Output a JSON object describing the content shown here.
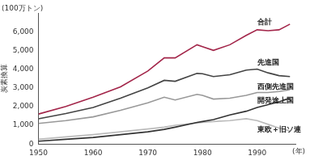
{
  "chart_data": {
    "type": "line",
    "y_label": "炭素換算",
    "y_unit": "(100万トン)",
    "x_label": "(年)",
    "x": [
      1950,
      1955,
      1960,
      1965,
      1970,
      1973,
      1975,
      1979,
      1980,
      1982,
      1985,
      1988,
      1990,
      1992,
      1994,
      1996
    ],
    "series": [
      {
        "name": "合計",
        "color": "#a3264a",
        "values": [
          1600,
          2000,
          2500,
          3050,
          3900,
          4600,
          4600,
          5300,
          5200,
          5000,
          5300,
          5800,
          6100,
          6050,
          6100,
          6400
        ]
      },
      {
        "name": "先進国",
        "color": "#444444",
        "values": [
          1350,
          1630,
          1950,
          2450,
          3000,
          3400,
          3350,
          3770,
          3750,
          3600,
          3700,
          3950,
          4000,
          3800,
          3650,
          3600
        ]
      },
      {
        "name": "西側先進国",
        "color": "#999999",
        "values": [
          1100,
          1250,
          1450,
          1800,
          2200,
          2500,
          2350,
          2650,
          2600,
          2400,
          2450,
          2600,
          2750,
          2750,
          2800,
          2900
        ]
      },
      {
        "name": "開発途上国",
        "color": "#333333",
        "values": [
          150,
          250,
          350,
          500,
          650,
          780,
          900,
          1150,
          1200,
          1300,
          1550,
          1750,
          1950,
          2100,
          2250,
          2450
        ]
      },
      {
        "name": "東欧＋旧ソ連",
        "color": "#bbbbbb",
        "values": [
          250,
          380,
          500,
          650,
          800,
          900,
          1000,
          1120,
          1150,
          1200,
          1250,
          1350,
          1250,
          1050,
          850,
          700
        ]
      }
    ],
    "xlim": [
      1950,
      1997
    ],
    "xticks": [
      1950,
      1960,
      1970,
      1980,
      1990
    ],
    "ylim": [
      0,
      7000
    ],
    "yticks": [
      0,
      {
        "value": 1000,
        "label": "1,000"
      },
      {
        "value": 2000,
        "label": "2,000"
      },
      {
        "value": 3000,
        "label": "3,000"
      },
      {
        "value": 4000,
        "label": "4,000"
      },
      {
        "value": 5000,
        "label": "5,000"
      },
      {
        "value": 6000,
        "label": "6,000"
      }
    ],
    "grid": false
  }
}
